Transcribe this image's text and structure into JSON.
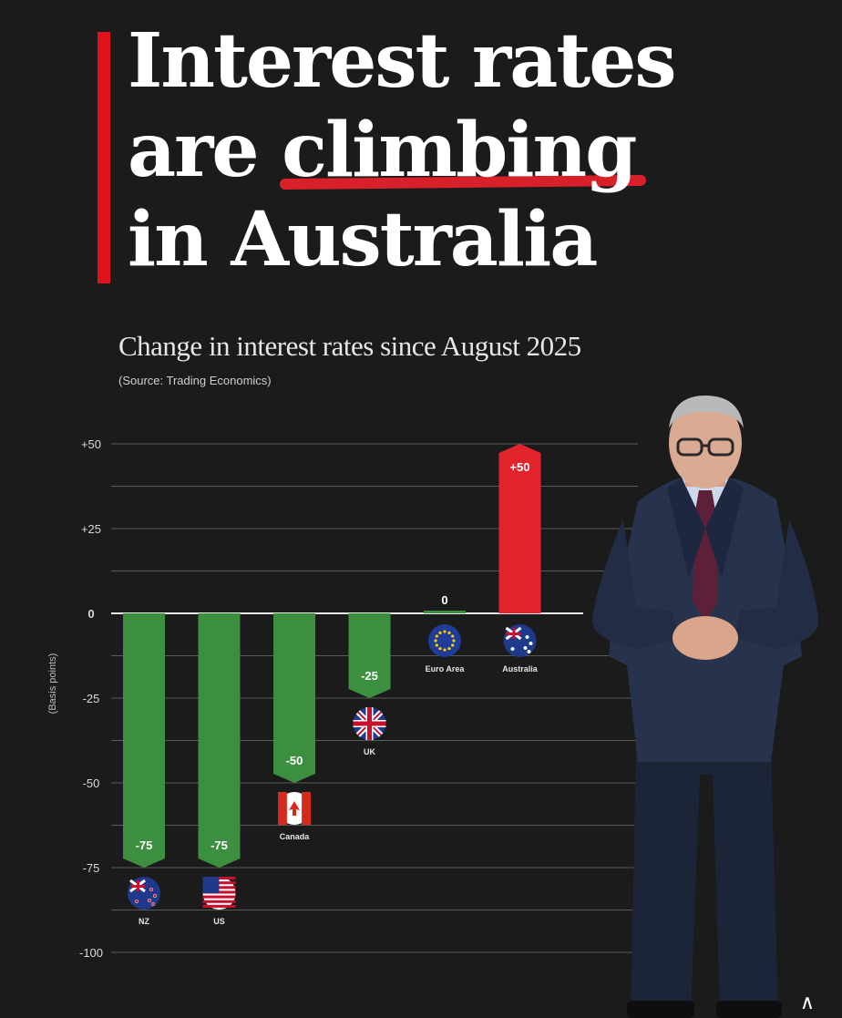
{
  "title": {
    "line1": "Interest rates",
    "line2_prefix": "are ",
    "line2_emphasis": "climbing",
    "line3": "in Australia"
  },
  "subtitle": "Change in interest rates since August 2025",
  "source": "(Source: Trading Economics)",
  "colors": {
    "accent": "#e0121b",
    "negative": "#3b8f3e",
    "positive": "#e2252d",
    "background": "#1b1b1b"
  },
  "chart_data": {
    "type": "bar",
    "ylabel": "(Basis points)",
    "ylim": [
      -100,
      50
    ],
    "yticks": [
      50,
      25,
      0,
      -25,
      -50,
      -75,
      -100
    ],
    "ytick_labels": [
      "+50",
      "+25",
      "0",
      "-25",
      "-50",
      "-75",
      "-100"
    ],
    "grid": true,
    "categories": [
      "NZ",
      "US",
      "Canada",
      "UK",
      "Euro Area",
      "Australia"
    ],
    "values": [
      -75,
      -75,
      -50,
      -25,
      0,
      50
    ],
    "value_labels": [
      "-75",
      "-75",
      "-50",
      "-25",
      "0",
      "+50"
    ],
    "flag_icons": [
      "nz-flag-icon",
      "us-flag-icon",
      "canada-flag-icon",
      "uk-flag-icon",
      "eu-flag-icon",
      "australia-flag-icon"
    ]
  }
}
